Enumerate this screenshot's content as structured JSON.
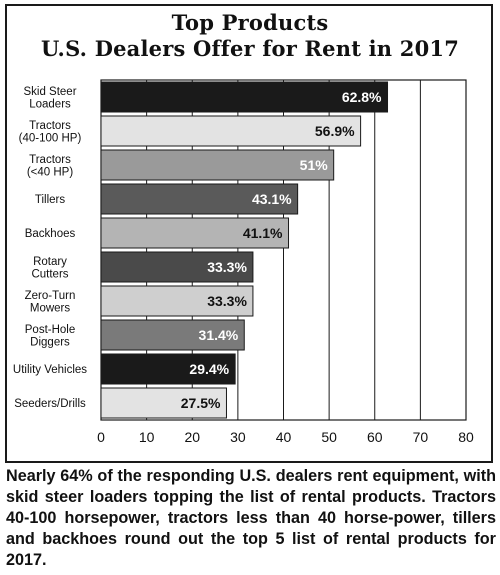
{
  "chart_data": {
    "type": "bar",
    "orientation": "horizontal",
    "title_line1": "Top Products",
    "title_line2": "U.S. Dealers Offer for Rent in 2017",
    "categories": [
      "Skid Steer\nLoaders",
      "Tractors\n(40-100 HP)",
      "Tractors\n(<40 HP)",
      "Tillers",
      "Backhoes",
      "Rotary\nCutters",
      "Zero-Turn\nMowers",
      "Post-Hole\nDiggers",
      "Utility Vehicles",
      "Seeders/Drills"
    ],
    "values": [
      62.8,
      56.9,
      51,
      43.1,
      41.1,
      33.3,
      33.3,
      31.4,
      29.4,
      27.5
    ],
    "value_labels": [
      "62.8%",
      "56.9%",
      "51%",
      "43.1%",
      "41.1%",
      "33.3%",
      "33.3%",
      "31.4%",
      "29.4%",
      "27.5%"
    ],
    "bar_colors": [
      "#1a1a1a",
      "#e3e3e3",
      "#9a9a9a",
      "#5a5a5a",
      "#b4b4b4",
      "#4a4a4a",
      "#cfcfcf",
      "#7a7a7a",
      "#1a1a1a",
      "#e3e3e3"
    ],
    "label_colors": [
      "#ffffff",
      "#111111",
      "#ffffff",
      "#ffffff",
      "#111111",
      "#ffffff",
      "#111111",
      "#ffffff",
      "#ffffff",
      "#111111"
    ],
    "xlim": [
      0,
      80
    ],
    "xticks": [
      0,
      10,
      20,
      30,
      40,
      50,
      60,
      70,
      80
    ],
    "grid": true,
    "xlabel": "",
    "ylabel": ""
  },
  "caption": "Nearly 64% of the responding U.S. dealers rent equipment, with skid steer loaders topping the list of rental products. Tractors 40-100 horsepower, tractors less than 40 horse-power, tillers and backhoes round out the top 5 list of rental products for 2017."
}
